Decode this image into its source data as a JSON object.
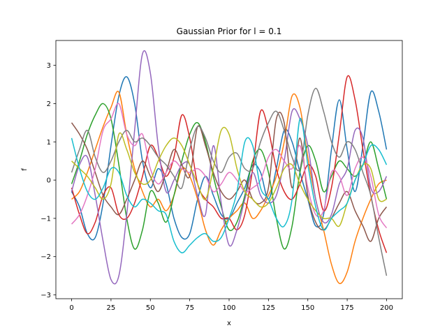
{
  "chart_data": {
    "type": "line",
    "title": "Gaussian Prior for l = 0.1",
    "xlabel": "x",
    "ylabel": "f",
    "xlim": [
      -10,
      210
    ],
    "ylim": [
      -3.1,
      3.65
    ],
    "xticks": [
      0,
      25,
      50,
      75,
      100,
      125,
      150,
      175,
      200
    ],
    "yticks": [
      -3,
      -2,
      -1,
      0,
      1,
      2,
      3
    ],
    "grid": false,
    "legend": "none",
    "x": [
      0,
      5,
      10,
      15,
      20,
      25,
      30,
      35,
      40,
      45,
      50,
      55,
      60,
      65,
      70,
      75,
      80,
      85,
      90,
      95,
      100,
      105,
      110,
      115,
      120,
      125,
      130,
      135,
      140,
      145,
      150,
      155,
      160,
      165,
      170,
      175,
      180,
      185,
      190,
      195,
      200
    ],
    "series": [
      {
        "color": "#1f77b4",
        "values": [
          -0.3,
          -0.7,
          -1.4,
          -1.5,
          -0.6,
          0.9,
          2.2,
          2.7,
          2.0,
          0.5,
          -0.2,
          0.3,
          -0.1,
          -1.0,
          -1.5,
          -1.4,
          -0.5,
          0.1,
          -0.4,
          -0.9,
          -1.0,
          -0.6,
          -0.2,
          0.4,
          0.2,
          -0.5,
          0.3,
          1.3,
          1.0,
          0.2,
          -0.5,
          -1.2,
          -0.9,
          0.8,
          2.1,
          0.8,
          -0.3,
          0.9,
          2.3,
          1.8,
          0.8
        ]
      },
      {
        "color": "#ff7f0e",
        "values": [
          -0.5,
          -0.3,
          0.2,
          0.8,
          1.4,
          1.9,
          2.3,
          1.2,
          0.3,
          -0.3,
          -0.7,
          -0.5,
          -0.8,
          -0.4,
          0.3,
          0.1,
          -0.5,
          -1.3,
          -1.7,
          -1.3,
          -1.0,
          -0.8,
          -0.6,
          -1.0,
          -0.8,
          -0.4,
          0.1,
          1.0,
          2.2,
          1.9,
          0.6,
          -0.5,
          -1.3,
          -2.2,
          -2.7,
          -2.4,
          -1.6,
          -1.0,
          -0.5,
          -0.1,
          0.0
        ]
      },
      {
        "color": "#2ca02c",
        "values": [
          -0.1,
          0.5,
          1.2,
          1.7,
          2.0,
          1.6,
          0.4,
          -1.0,
          -1.8,
          -1.3,
          -0.3,
          -0.6,
          -1.1,
          -0.4,
          0.5,
          1.2,
          1.5,
          1.0,
          0.1,
          -0.7,
          -1.3,
          -1.1,
          -0.4,
          0.5,
          0.8,
          0.2,
          -1.0,
          -1.8,
          -1.2,
          0.2,
          0.9,
          0.5,
          -0.3,
          0.1,
          0.5,
          0.3,
          0.1,
          0.4,
          1.0,
          0.3,
          -0.5
        ]
      },
      {
        "color": "#d62728",
        "values": [
          -0.2,
          -0.9,
          -1.4,
          -1.1,
          -0.4,
          -0.2,
          -0.9,
          -1.0,
          -0.6,
          0.1,
          0.9,
          0.6,
          0.1,
          0.6,
          1.7,
          1.1,
          -0.1,
          -0.5,
          -0.7,
          -1.0,
          -1.0,
          -1.3,
          -0.9,
          0.3,
          1.8,
          1.3,
          0.3,
          -0.3,
          -0.5,
          -0.1,
          0.4,
          0.1,
          -0.8,
          -0.2,
          1.2,
          2.7,
          2.1,
          0.8,
          -0.4,
          -1.3,
          -1.9
        ]
      },
      {
        "color": "#9467bd",
        "values": [
          -0.3,
          0.4,
          0.6,
          -0.4,
          -1.6,
          -2.6,
          -2.5,
          -0.9,
          1.3,
          3.3,
          2.8,
          0.9,
          -0.3,
          0.0,
          0.4,
          0.4,
          -0.4,
          -0.9,
          0.9,
          -0.6,
          -1.7,
          -1.3,
          -0.5,
          0.2,
          -0.4,
          -0.6,
          -0.4,
          0.5,
          1.8,
          1.6,
          0.9,
          -0.5,
          -1.1,
          -0.9,
          -0.1,
          0.3,
          1.3,
          1.1,
          -0.2,
          -0.3,
          0.1
        ]
      },
      {
        "color": "#8c564b",
        "values": [
          1.5,
          1.2,
          0.8,
          0.2,
          -0.4,
          -0.7,
          -0.9,
          -0.5,
          0.0,
          0.5,
          0.1,
          -0.3,
          0.2,
          0.8,
          0.4,
          0.1,
          1.4,
          0.9,
          0.2,
          -0.3,
          -0.5,
          -0.3,
          0.0,
          -0.5,
          -0.6,
          -0.2,
          1.6,
          1.5,
          -0.2,
          1.1,
          -0.4,
          -1.1,
          -1.3,
          -1.0,
          -0.6,
          -0.3,
          -0.8,
          -1.2,
          -1.6,
          -1.0,
          -0.7
        ]
      },
      {
        "color": "#e377c2",
        "values": [
          -1.15,
          -0.9,
          -0.4,
          0.3,
          1.3,
          1.6,
          2.0,
          1.2,
          0.9,
          1.2,
          0.3,
          -0.1,
          0.2,
          0.5,
          0.3,
          0.2,
          0.3,
          0.1,
          -0.3,
          -0.1,
          0.2,
          0.0,
          -0.3,
          -0.2,
          0.0,
          0.6,
          0.8,
          0.5,
          0.3,
          0.9,
          -0.2,
          -0.9,
          -0.8,
          0.2,
          0.1,
          -0.4,
          0.3,
          0.6,
          0.1,
          -0.9,
          -1.25
        ]
      },
      {
        "color": "#7f7f7f",
        "values": [
          0.2,
          0.8,
          1.3,
          0.6,
          0.2,
          0.5,
          1.0,
          1.3,
          1.0,
          1.1,
          0.9,
          0.6,
          0.4,
          0.1,
          -0.2,
          0.8,
          1.4,
          1.1,
          0.5,
          0.2,
          0.6,
          0.7,
          0.3,
          0.3,
          1.0,
          1.5,
          1.8,
          1.3,
          0.6,
          0.3,
          1.7,
          2.4,
          1.8,
          1.0,
          0.6,
          1.0,
          0.8,
          0.2,
          -0.4,
          -1.5,
          -2.5
        ]
      },
      {
        "color": "#bcbd22",
        "values": [
          0.5,
          0.3,
          0.1,
          -0.2,
          -0.5,
          -0.1,
          1.2,
          0.8,
          0.2,
          -0.1,
          0.0,
          0.5,
          0.9,
          1.1,
          0.9,
          0.4,
          -0.1,
          -0.5,
          0.3,
          1.3,
          1.2,
          0.3,
          -0.3,
          -0.5,
          -0.7,
          -0.6,
          -0.2,
          0.3,
          0.4,
          -0.1,
          -0.5,
          -0.8,
          -1.0,
          -1.0,
          -1.2,
          -0.6,
          0.0,
          0.4,
          0.3,
          -0.5,
          -0.5
        ]
      },
      {
        "color": "#17becf",
        "values": [
          1.1,
          0.3,
          -0.3,
          -0.5,
          -0.2,
          0.3,
          0.2,
          -0.4,
          -0.7,
          -0.5,
          -0.6,
          -0.8,
          -0.9,
          -1.6,
          -1.9,
          -1.7,
          -1.5,
          -1.4,
          -1.6,
          -1.5,
          -1.0,
          -0.3,
          1.0,
          0.9,
          -0.2,
          -0.5,
          -1.0,
          -1.2,
          -0.5,
          1.6,
          0.4,
          -0.7,
          -1.3,
          -1.0,
          -0.8,
          -0.6,
          0.0,
          0.4,
          0.9,
          0.8,
          0.4
        ]
      }
    ]
  }
}
